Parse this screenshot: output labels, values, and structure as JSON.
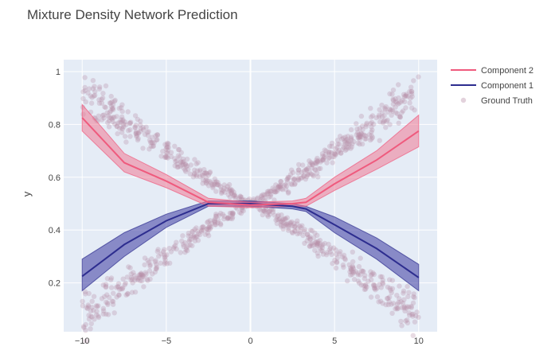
{
  "chart_data": {
    "type": "line",
    "title": "Mixture Density Network Prediction",
    "xlabel": "",
    "ylabel": "y",
    "xlim": [
      -11.1,
      11.1
    ],
    "ylim": [
      0.015,
      1.045
    ],
    "x_ticks": [
      -10,
      -5,
      0,
      5,
      10
    ],
    "x_tick_labels": [
      "−10",
      "−5",
      "0",
      "5",
      "10"
    ],
    "y_ticks": [
      0.2,
      0.4,
      0.6,
      0.8,
      1
    ],
    "y_tick_labels": [
      "0.2",
      "0.4",
      "0.6",
      "0.8",
      "1"
    ],
    "grid": true,
    "legend_position": "top-right",
    "x": [
      -10,
      -7.5,
      -5,
      -2.5,
      0,
      2.5,
      3.3,
      5,
      7.5,
      10
    ],
    "series": [
      {
        "name": "Component 2",
        "color": "#ef5a7d",
        "band_color": "#f07a94",
        "values": [
          0.825,
          0.655,
          0.585,
          0.505,
          0.495,
          0.5,
          0.505,
          0.575,
          0.665,
          0.775
        ],
        "lower": [
          0.775,
          0.62,
          0.56,
          0.49,
          0.485,
          0.49,
          0.49,
          0.55,
          0.63,
          0.715
        ],
        "upper": [
          0.875,
          0.69,
          0.61,
          0.52,
          0.505,
          0.51,
          0.52,
          0.6,
          0.7,
          0.835
        ]
      },
      {
        "name": "Component 1",
        "color": "#2d2d8f",
        "band_color": "#3d3ba0",
        "values": [
          0.225,
          0.345,
          0.435,
          0.5,
          0.5,
          0.49,
          0.48,
          0.42,
          0.33,
          0.22
        ],
        "lower": [
          0.17,
          0.3,
          0.41,
          0.49,
          0.49,
          0.48,
          0.47,
          0.39,
          0.29,
          0.17
        ],
        "upper": [
          0.29,
          0.39,
          0.46,
          0.51,
          0.51,
          0.5,
          0.49,
          0.45,
          0.37,
          0.27
        ]
      },
      {
        "name": "Ground Truth",
        "kind": "scatter",
        "color": "#b98ea8",
        "pattern": "y = 0.5 ± 0.032·|x|^1.13, spread ~0.045 (two crossing branches)",
        "x_range": [
          -10,
          10
        ]
      }
    ],
    "legend": [
      "Component 2",
      "Component 1",
      "Ground Truth"
    ]
  }
}
